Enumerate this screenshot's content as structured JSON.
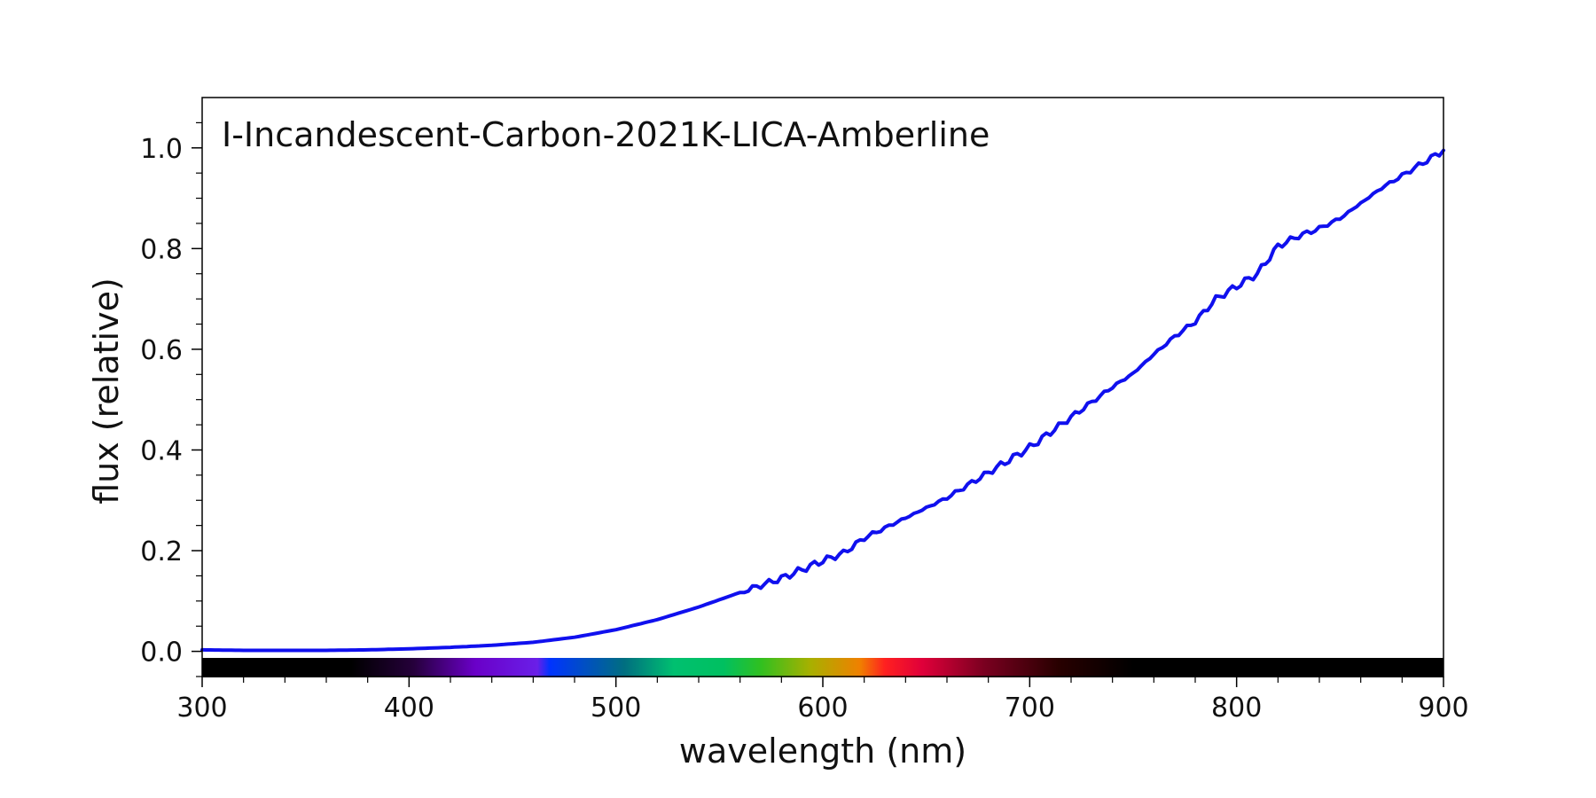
{
  "chart_data": {
    "type": "line",
    "title": "I-Incandescent-Carbon-2021K-LICA-Amberline",
    "xlabel": "wavelength (nm)",
    "ylabel": "flux (relative)",
    "xlim": [
      300,
      900
    ],
    "ylim": [
      -0.05,
      1.1
    ],
    "x_ticks": [
      300,
      400,
      500,
      600,
      700,
      800,
      900
    ],
    "x_tick_labels": [
      "300",
      "400",
      "500",
      "600",
      "700",
      "800",
      "900"
    ],
    "y_ticks": [
      0.0,
      0.2,
      0.4,
      0.6,
      0.8,
      1.0
    ],
    "y_tick_labels": [
      "0.0",
      "0.2",
      "0.4",
      "0.6",
      "0.8",
      "1.0"
    ],
    "grid": false,
    "legend": false,
    "colors": {
      "series": "#1010ee",
      "axis": "#000000"
    },
    "spectrum_bar": true,
    "series": [
      {
        "x": [
          300,
          320,
          340,
          360,
          380,
          400,
          420,
          440,
          460,
          480,
          500,
          520,
          540,
          560,
          580,
          600,
          610,
          620,
          640,
          660,
          680,
          700,
          720,
          740,
          750,
          760,
          770,
          780,
          790,
          800,
          810,
          820,
          830,
          840,
          850,
          860,
          870,
          880,
          890,
          900
        ],
        "y": [
          0.003,
          0.002,
          0.002,
          0.002,
          0.003,
          0.005,
          0.008,
          0.012,
          0.018,
          0.028,
          0.043,
          0.063,
          0.088,
          0.117,
          0.145,
          0.18,
          0.195,
          0.225,
          0.265,
          0.305,
          0.355,
          0.405,
          0.465,
          0.525,
          0.552,
          0.59,
          0.625,
          0.655,
          0.7,
          0.725,
          0.75,
          0.805,
          0.825,
          0.84,
          0.86,
          0.89,
          0.92,
          0.945,
          0.97,
          0.995
        ]
      }
    ]
  }
}
